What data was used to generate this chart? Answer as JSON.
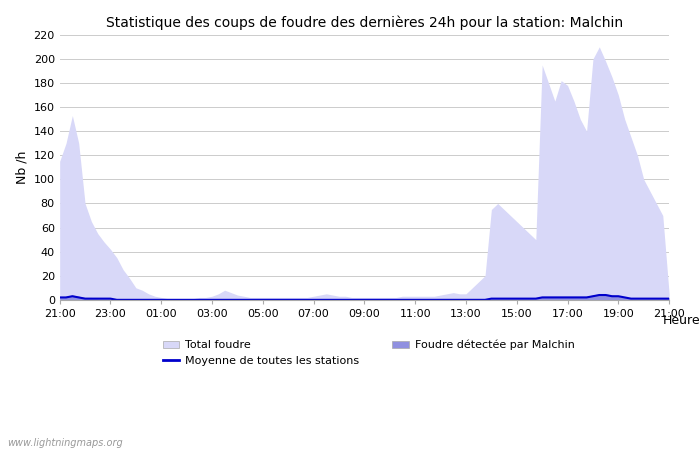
{
  "title": "Statistique des coups de foudre des dernières 24h pour la station: Malchin",
  "xlabel": "Heure",
  "ylabel": "Nb /h",
  "watermark": "www.lightningmaps.org",
  "ylim": [
    0,
    220
  ],
  "yticks": [
    0,
    20,
    40,
    60,
    80,
    100,
    120,
    140,
    160,
    180,
    200,
    220
  ],
  "x_labels": [
    "21:00",
    "23:00",
    "01:00",
    "03:00",
    "05:00",
    "07:00",
    "09:00",
    "11:00",
    "13:00",
    "15:00",
    "17:00",
    "19:00",
    "21:00"
  ],
  "total_foudre_color": "#d8d8f8",
  "malchin_color": "#9090e0",
  "moyenne_color": "#0000cc",
  "background_color": "#ffffff",
  "grid_color": "#cccccc",
  "x": [
    0,
    0.25,
    0.5,
    0.75,
    1.0,
    1.25,
    1.5,
    1.75,
    2.0,
    2.25,
    2.5,
    2.75,
    3.0,
    3.25,
    3.5,
    3.75,
    4.0,
    4.25,
    4.5,
    4.75,
    5.0,
    5.25,
    5.5,
    5.75,
    6.0,
    6.25,
    6.5,
    6.75,
    7.0,
    7.25,
    7.5,
    7.75,
    8.0,
    8.25,
    8.5,
    8.75,
    9.0,
    9.25,
    9.5,
    9.75,
    10.0,
    10.25,
    10.5,
    10.75,
    11.0,
    11.25,
    11.5,
    11.75,
    12.0,
    12.25,
    12.5,
    12.75,
    13.0,
    13.25,
    13.5,
    13.75,
    14.0,
    14.25,
    14.5,
    14.75,
    15.0,
    15.25,
    15.5,
    15.75,
    16.0,
    16.25,
    16.5,
    16.75,
    17.0,
    17.25,
    17.5,
    17.75,
    18.0,
    18.25,
    18.5,
    18.75,
    19.0,
    19.25,
    19.5,
    19.75,
    20.0,
    20.25,
    20.5,
    20.75,
    21.0,
    21.25,
    21.5,
    21.75,
    22.0,
    22.25,
    22.5,
    22.75,
    23.0,
    23.25,
    23.5,
    23.75,
    24.0
  ],
  "total_foudre": [
    115,
    130,
    153,
    130,
    80,
    65,
    55,
    48,
    42,
    35,
    25,
    18,
    10,
    8,
    5,
    3,
    2,
    1,
    1,
    1,
    1,
    1,
    2,
    2,
    3,
    5,
    8,
    6,
    4,
    3,
    2,
    2,
    2,
    2,
    2,
    2,
    2,
    2,
    2,
    2,
    3,
    4,
    5,
    4,
    3,
    3,
    2,
    2,
    2,
    2,
    2,
    2,
    2,
    2,
    3,
    3,
    3,
    3,
    3,
    3,
    4,
    5,
    6,
    5,
    5,
    10,
    15,
    20,
    75,
    80,
    75,
    70,
    65,
    60,
    55,
    50,
    195,
    180,
    165,
    182,
    178,
    165,
    150,
    140,
    200,
    210,
    198,
    185,
    170,
    150,
    135,
    120,
    100,
    90,
    80,
    70,
    5
  ],
  "malchin_foudre": [
    2,
    3,
    4,
    3,
    2,
    2,
    1,
    1,
    1,
    0,
    0,
    0,
    0,
    0,
    0,
    0,
    0,
    0,
    0,
    0,
    0,
    0,
    0,
    0,
    0,
    0,
    0,
    0,
    0,
    0,
    0,
    0,
    0,
    0,
    0,
    0,
    0,
    0,
    0,
    0,
    0,
    0,
    0,
    0,
    0,
    0,
    0,
    0,
    0,
    0,
    0,
    0,
    0,
    0,
    0,
    0,
    0,
    0,
    0,
    0,
    0,
    0,
    0,
    0,
    0,
    0,
    0,
    0,
    1,
    1,
    1,
    1,
    1,
    1,
    1,
    1,
    3,
    3,
    3,
    3,
    3,
    3,
    3,
    3,
    4,
    5,
    5,
    4,
    3,
    2,
    1,
    1,
    1,
    1,
    1,
    1,
    2
  ],
  "moyenne": [
    2,
    2,
    3,
    2,
    1,
    1,
    1,
    1,
    1,
    0,
    0,
    0,
    0,
    0,
    0,
    0,
    0,
    0,
    0,
    0,
    0,
    0,
    0,
    0,
    0,
    0,
    0,
    0,
    0,
    0,
    0,
    0,
    0,
    0,
    0,
    0,
    0,
    0,
    0,
    0,
    0,
    0,
    0,
    0,
    0,
    0,
    0,
    0,
    0,
    0,
    0,
    0,
    0,
    0,
    0,
    0,
    0,
    0,
    0,
    0,
    0,
    0,
    0,
    0,
    0,
    0,
    0,
    0,
    1,
    1,
    1,
    1,
    1,
    1,
    1,
    1,
    2,
    2,
    2,
    2,
    2,
    2,
    2,
    2,
    3,
    4,
    4,
    3,
    3,
    2,
    1,
    1,
    1,
    1,
    1,
    1,
    1
  ],
  "legend": {
    "total_foudre_label": "Total foudre",
    "malchin_label": "Foudre détectée par Malchin",
    "moyenne_label": "Moyenne de toutes les stations"
  }
}
